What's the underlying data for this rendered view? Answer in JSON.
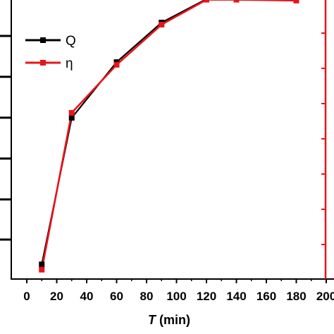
{
  "chart_data": {
    "type": "line",
    "title": "",
    "xlabel": {
      "var": "T",
      "unit": " (min)"
    },
    "ylabel_left": "",
    "ylabel_right": "",
    "xlim": [
      0,
      200
    ],
    "x_ticks": [
      "0",
      "20",
      "40",
      "60",
      "80",
      "100",
      "120",
      "140",
      "160",
      "180",
      "200"
    ],
    "ylim": [
      0,
      1
    ],
    "grid": false,
    "legend_position": "top-left",
    "axis_colors": {
      "left": "#000000",
      "right": "#e8141b",
      "bottom": "#000000"
    },
    "x": [
      10,
      30,
      60,
      90,
      120,
      140,
      180
    ],
    "series": [
      {
        "name": "Q",
        "color": "#000000",
        "marker": "square",
        "values": [
          0.05,
          0.55,
          0.74,
          0.875,
          0.955,
          0.957,
          0.951
        ]
      },
      {
        "name": "η",
        "color": "#e8141b",
        "marker": "square",
        "values": [
          0.032,
          0.567,
          0.731,
          0.868,
          0.953,
          0.953,
          0.95
        ]
      }
    ]
  }
}
